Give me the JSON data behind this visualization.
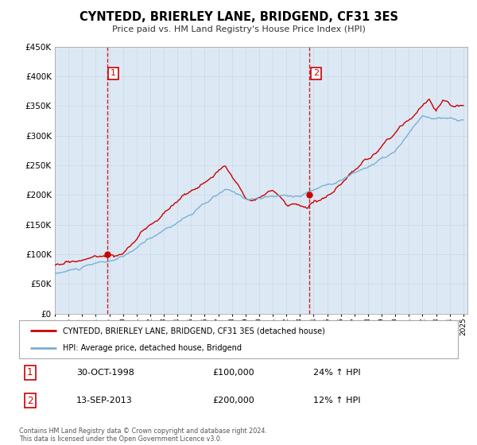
{
  "title": "CYNTEDD, BRIERLEY LANE, BRIDGEND, CF31 3ES",
  "subtitle": "Price paid vs. HM Land Registry's House Price Index (HPI)",
  "legend_label_red": "CYNTEDD, BRIERLEY LANE, BRIDGEND, CF31 3ES (detached house)",
  "legend_label_blue": "HPI: Average price, detached house, Bridgend",
  "sale1_date": "30-OCT-1998",
  "sale1_price": "£100,000",
  "sale1_hpi": "24% ↑ HPI",
  "sale2_date": "13-SEP-2013",
  "sale2_price": "£200,000",
  "sale2_hpi": "12% ↑ HPI",
  "footnote": "Contains HM Land Registry data © Crown copyright and database right 2024.\nThis data is licensed under the Open Government Licence v3.0.",
  "ylim": [
    0,
    450000
  ],
  "yticks": [
    0,
    50000,
    100000,
    150000,
    200000,
    250000,
    300000,
    350000,
    400000,
    450000
  ],
  "bg_color": "#dce9f5",
  "plot_bg": "#ffffff",
  "red_color": "#cc0000",
  "blue_color": "#7ab0d4",
  "vline_color": "#cc0000",
  "marker_color": "#cc0000",
  "sale1_date_num": 1998.83,
  "sale2_date_num": 2013.71,
  "sale1_price_val": 100000,
  "sale2_price_val": 200000,
  "xlim_left": 1995.0,
  "xlim_right": 2025.3
}
